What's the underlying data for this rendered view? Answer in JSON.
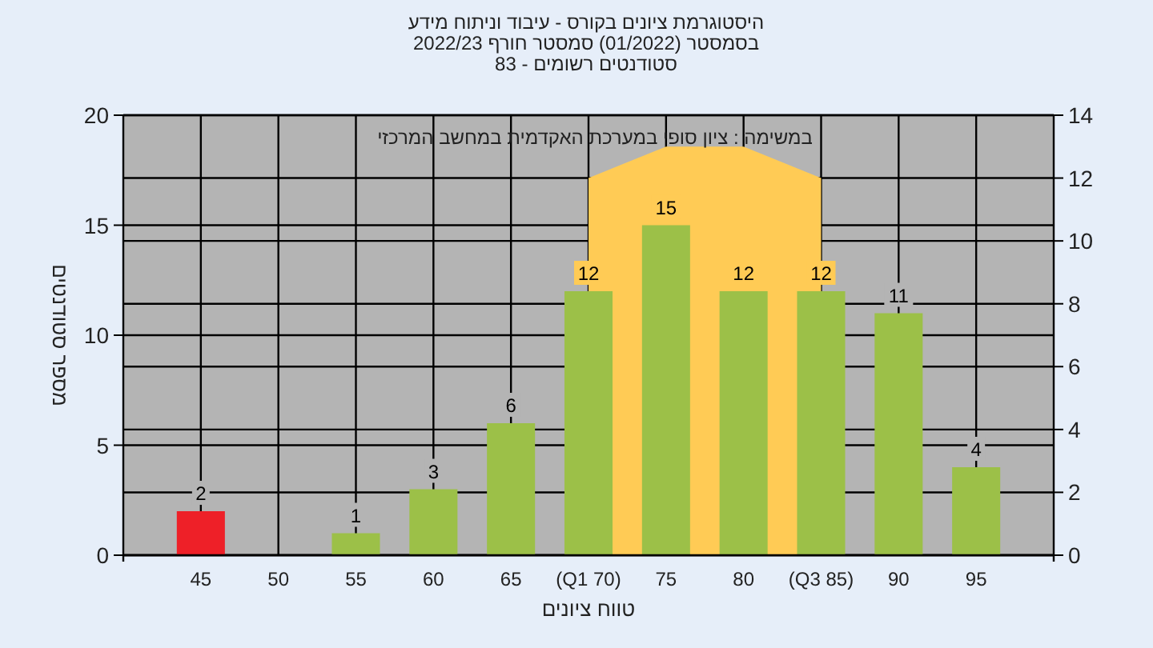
{
  "chart_data": {
    "type": "bar",
    "title": "היסטוגרמת ציונים בקורס - עיבוד וניתוח מידע\nבסמסטר  (01/2022)  סמסטר חורף 2022/23\nסטודנטים רשומים - 83",
    "xlabel": "טווח ציונים",
    "ylabel": "מספר סטודנטים",
    "annotations": [
      "במשימה : ציון סופי במערכת האקדמית במחשב המרכזי"
    ],
    "categories": [
      "45",
      "50",
      "55",
      "60",
      "65",
      "(Q1 70)",
      "75",
      "80",
      "(Q3 85)",
      "90",
      "95"
    ],
    "series": [
      {
        "type": "area",
        "axis": "y2",
        "color": "#ffcb55",
        "values": [
          null,
          null,
          null,
          null,
          null,
          12,
          13,
          13,
          12,
          null,
          null
        ]
      },
      {
        "type": "bar",
        "colors": [
          "#ee2028",
          "#9cc048",
          "#9cc048",
          "#9cc048",
          "#9cc048",
          "#9cc048",
          "#9cc048",
          "#9cc048",
          "#9cc048",
          "#9cc048",
          "#9cc048"
        ],
        "values": [
          2,
          0,
          1,
          3,
          6,
          12,
          15,
          12,
          12,
          11,
          4
        ],
        "value_labels": [
          "2",
          null,
          "1",
          "3",
          "6",
          "12",
          "15",
          "12",
          "12",
          "11",
          "4"
        ]
      }
    ],
    "ylim": [
      0,
      20
    ],
    "yticks": [
      0,
      5,
      10,
      15,
      20
    ],
    "y2lim": [
      0,
      14
    ],
    "y2ticks": [
      0,
      2,
      4,
      6,
      8,
      10,
      12,
      14
    ],
    "grid": true,
    "legend": false
  }
}
